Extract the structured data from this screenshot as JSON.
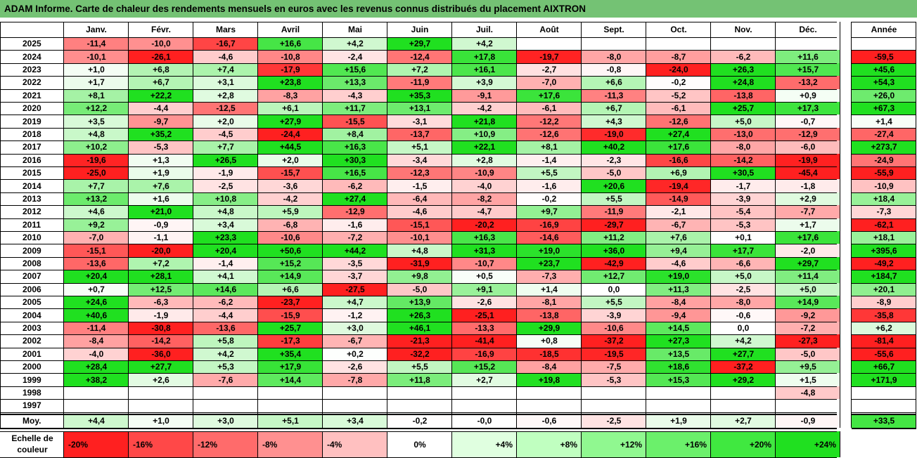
{
  "title": "ADAM Informe. Carte de chaleur des rendements mensuels en euros avec les revenus connus distribués du placement AIXTRON",
  "chart_data": {
    "type": "heatmap",
    "title": "ADAM Informe. Carte de chaleur des rendements mensuels en euros avec les revenus connus distribués du placement AIXTRON",
    "columns": [
      "Janv.",
      "Févr.",
      "Mars",
      "Avril",
      "Mai",
      "Juin",
      "Juil.",
      "Août",
      "Sept.",
      "Oct.",
      "Nov.",
      "Déc."
    ],
    "year_column": "Année",
    "rows": [
      {
        "year": "2025",
        "values": [
          "-11,4",
          "-10,0",
          "-16,7",
          "+16,6",
          "+4,2",
          "+29,7",
          "+4,2",
          "",
          "",
          "",
          "",
          ""
        ],
        "annual": ""
      },
      {
        "year": "2024",
        "values": [
          "-10,1",
          "-26,1",
          "-4,6",
          "-10,8",
          "-2,4",
          "-12,4",
          "+17,8",
          "-19,7",
          "-8,0",
          "-8,7",
          "-6,2",
          "+11,6"
        ],
        "annual": "-59,5"
      },
      {
        "year": "2023",
        "values": [
          "+1,0",
          "+6,8",
          "+7,4",
          "-17,9",
          "+15,6",
          "+7,2",
          "+16,1",
          "-2,7",
          "-0,8",
          "-24,0",
          "+26,3",
          "+15,7"
        ],
        "annual": "+45,6"
      },
      {
        "year": "2022",
        "values": [
          "+1,7",
          "+6,7",
          "+3,1",
          "+23,8",
          "+13,3",
          "-11,9",
          "+3,9",
          "-7,0",
          "+6,6",
          "-0,2",
          "+24,8",
          "-13,2"
        ],
        "annual": "+54,3"
      },
      {
        "year": "2021",
        "values": [
          "+8,1",
          "+22,2",
          "+2,8",
          "-8,3",
          "-4,3",
          "+35,3",
          "-9,1",
          "+17,6",
          "-11,3",
          "-5,2",
          "-13,8",
          "+0,9"
        ],
        "annual": "+26,0"
      },
      {
        "year": "2020",
        "values": [
          "+12,2",
          "-4,4",
          "-12,5",
          "+6,1",
          "+11,7",
          "+13,1",
          "-4,2",
          "-6,1",
          "+6,7",
          "-6,1",
          "+25,7",
          "+17,3"
        ],
        "annual": "+67,3"
      },
      {
        "year": "2019",
        "values": [
          "+3,5",
          "-9,7",
          "+2,0",
          "+27,9",
          "-15,5",
          "-3,1",
          "+21,8",
          "-12,2",
          "+4,3",
          "-12,6",
          "+5,0",
          "-0,7"
        ],
        "annual": "+1,4"
      },
      {
        "year": "2018",
        "values": [
          "+4,8",
          "+35,2",
          "-4,5",
          "-24,4",
          "+8,4",
          "-13,7",
          "+10,9",
          "-12,6",
          "-19,0",
          "+27,4",
          "-13,0",
          "-12,9"
        ],
        "annual": "-27,4"
      },
      {
        "year": "2017",
        "values": [
          "+10,2",
          "-5,3",
          "+7,7",
          "+44,5",
          "+16,3",
          "+5,1",
          "+22,1",
          "+8,1",
          "+40,2",
          "+17,6",
          "-8,0",
          "-6,0"
        ],
        "annual": "+273,7"
      },
      {
        "year": "2016",
        "values": [
          "-19,6",
          "+1,3",
          "+26,5",
          "+2,0",
          "+30,3",
          "-3,4",
          "+2,8",
          "-1,4",
          "-2,3",
          "-16,6",
          "-14,2",
          "-19,9"
        ],
        "annual": "-24,9"
      },
      {
        "year": "2015",
        "values": [
          "-25,0",
          "+1,9",
          "-1,9",
          "-15,7",
          "+16,5",
          "-12,3",
          "-10,9",
          "+5,5",
          "-5,0",
          "+6,9",
          "+30,5",
          "-45,4"
        ],
        "annual": "-55,9"
      },
      {
        "year": "2014",
        "values": [
          "+7,7",
          "+7,6",
          "-2,5",
          "-3,6",
          "-6,2",
          "-1,5",
          "-4,0",
          "-1,6",
          "+20,6",
          "-19,4",
          "-1,7",
          "-1,8"
        ],
        "annual": "-10,9"
      },
      {
        "year": "2013",
        "values": [
          "+13,2",
          "+1,6",
          "+10,8",
          "-4,2",
          "+27,4",
          "-6,4",
          "-8,2",
          "-0,2",
          "+5,5",
          "-14,9",
          "-3,9",
          "+2,9"
        ],
        "annual": "+18,4"
      },
      {
        "year": "2012",
        "values": [
          "+4,6",
          "+21,0",
          "+4,8",
          "+5,9",
          "-12,9",
          "-4,6",
          "-4,7",
          "+9,7",
          "-11,9",
          "-2,1",
          "-5,4",
          "-7,7"
        ],
        "annual": "-7,3"
      },
      {
        "year": "2011",
        "values": [
          "+9,2",
          "-0,9",
          "+3,4",
          "-6,8",
          "-1,6",
          "-15,1",
          "-20,2",
          "-16,9",
          "-29,7",
          "-6,7",
          "-5,3",
          "+1,7"
        ],
        "annual": "-62,1"
      },
      {
        "year": "2010",
        "values": [
          "-7,0",
          "-1,1",
          "+23,3",
          "-10,6",
          "-7,2",
          "-10,1",
          "+16,3",
          "-14,6",
          "+11,2",
          "+7,6",
          "+0,1",
          "+17,6"
        ],
        "annual": "+18,1"
      },
      {
        "year": "2009",
        "values": [
          "-15,1",
          "-20,0",
          "+20,4",
          "+50,6",
          "+44,2",
          "+4,8",
          "+31,3",
          "+19,0",
          "+36,0",
          "+9,4",
          "+17,7",
          "-2,0"
        ],
        "annual": "+395,6"
      },
      {
        "year": "2008",
        "values": [
          "-13,6",
          "+7,2",
          "-1,4",
          "+15,2",
          "-3,5",
          "-31,9",
          "-10,7",
          "+23,7",
          "-42,9",
          "-4,6",
          "-6,6",
          "+29,7"
        ],
        "annual": "-49,2"
      },
      {
        "year": "2007",
        "values": [
          "+20,4",
          "+28,1",
          "+4,1",
          "+14,9",
          "-3,7",
          "+9,8",
          "+0,5",
          "-7,3",
          "+12,7",
          "+19,0",
          "+5,0",
          "+11,4"
        ],
        "annual": "+184,7"
      },
      {
        "year": "2006",
        "values": [
          "+0,7",
          "+12,5",
          "+14,6",
          "+6,6",
          "-27,5",
          "-5,0",
          "+9,1",
          "+1,4",
          "0,0",
          "+11,3",
          "-2,5",
          "+5,0"
        ],
        "annual": "+20,1"
      },
      {
        "year": "2005",
        "values": [
          "+24,6",
          "-6,3",
          "-6,2",
          "-23,7",
          "+4,7",
          "+13,9",
          "-2,6",
          "-8,1",
          "+5,5",
          "-8,4",
          "-8,0",
          "+14,9"
        ],
        "annual": "-8,9"
      },
      {
        "year": "2004",
        "values": [
          "+40,6",
          "-1,9",
          "-4,4",
          "-15,9",
          "-1,2",
          "+26,3",
          "-25,1",
          "-13,8",
          "-3,9",
          "-9,4",
          "-0,6",
          "-9,2"
        ],
        "annual": "-35,8"
      },
      {
        "year": "2003",
        "values": [
          "-11,4",
          "-30,8",
          "-13,6",
          "+25,7",
          "+3,0",
          "+46,1",
          "-13,3",
          "+29,9",
          "-10,6",
          "+14,5",
          "0,0",
          "-7,2"
        ],
        "annual": "+6,2"
      },
      {
        "year": "2002",
        "values": [
          "-8,4",
          "-14,2",
          "+5,8",
          "-17,3",
          "-6,7",
          "-21,3",
          "-41,4",
          "+0,8",
          "-37,2",
          "+27,3",
          "+4,2",
          "-27,3"
        ],
        "annual": "-81,4"
      },
      {
        "year": "2001",
        "values": [
          "-4,0",
          "-36,0",
          "+4,2",
          "+35,4",
          "+0,2",
          "-32,2",
          "-16,9",
          "-18,5",
          "-19,5",
          "+13,5",
          "+27,7",
          "-5,0"
        ],
        "annual": "-55,6"
      },
      {
        "year": "2000",
        "values": [
          "+28,4",
          "+27,7",
          "+5,3",
          "+17,9",
          "-2,6",
          "+5,5",
          "+15,2",
          "-8,4",
          "-7,5",
          "+18,6",
          "-37,2",
          "+9,5"
        ],
        "annual": "+66,7"
      },
      {
        "year": "1999",
        "values": [
          "+38,2",
          "+2,6",
          "-7,6",
          "+14,4",
          "-7,8",
          "+11,8",
          "+2,7",
          "+19,8",
          "-5,3",
          "+15,3",
          "+29,2",
          "+1,5"
        ],
        "annual": "+171,9"
      },
      {
        "year": "1998",
        "values": [
          "",
          "",
          "",
          "",
          "",
          "",
          "",
          "",
          "",
          "",
          "",
          "-4,8"
        ],
        "annual": ""
      },
      {
        "year": "1997",
        "values": [
          "",
          "",
          "",
          "",
          "",
          "",
          "",
          "",
          "",
          "",
          "",
          ""
        ],
        "annual": ""
      }
    ],
    "average": {
      "label": "Moy.",
      "values": [
        "+4,4",
        "+1,0",
        "+3,0",
        "+5,1",
        "+3,4",
        "-0,2",
        "-0,0",
        "-0,6",
        "-2,5",
        "+1,9",
        "+2,7",
        "-0,9"
      ],
      "annual": "+33,5"
    },
    "legend": {
      "label": "Echelle de couleur",
      "stops": [
        "-20%",
        "-16%",
        "-12%",
        "-8%",
        "-4%",
        "0%",
        "+4%",
        "+8%",
        "+12%",
        "+16%",
        "+20%",
        "+24%"
      ],
      "colors": [
        "#ff2020",
        "#ff4848",
        "#ff6b6b",
        "#ff9090",
        "#ffc0c0",
        "#ffffff",
        "#e0ffe0",
        "#c0ffc0",
        "#90f890",
        "#6bf06b",
        "#40e840",
        "#20e020"
      ]
    },
    "colors": {
      "negative": "#ff2020",
      "positive": "#20e020",
      "neutral": "#ffffff",
      "title_bar": "#74c274"
    }
  }
}
